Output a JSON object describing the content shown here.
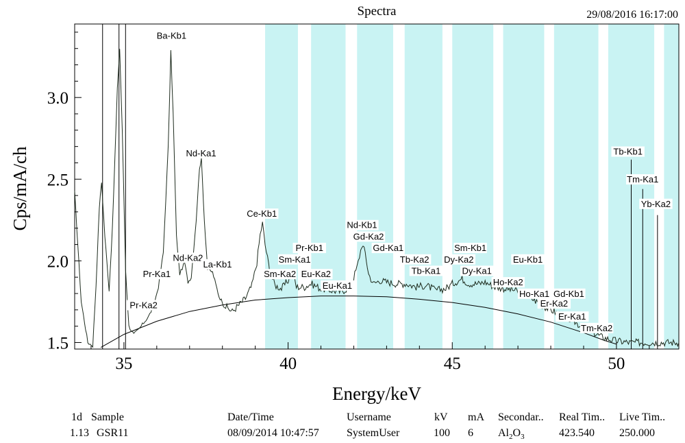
{
  "header": {
    "title": "Spectra",
    "timestamp": "29/08/2016 16:17:00"
  },
  "colors": {
    "highlight": "#c9f3f3",
    "trace": "#1c2a1c",
    "axis": "#000000"
  },
  "chart_data": {
    "type": "line",
    "xlabel": "Energy/keV",
    "ylabel": "Cps/mA/ch",
    "xlim": [
      33.5,
      51.9
    ],
    "ylim": [
      1.46,
      3.45
    ],
    "xticks": [
      35,
      40,
      45,
      50
    ],
    "yticks": [
      1.5,
      2.0,
      2.5,
      3.0
    ],
    "grid": false,
    "highlight_bands": [
      [
        39.3,
        40.3
      ],
      [
        40.7,
        41.75
      ],
      [
        42.1,
        43.2
      ],
      [
        43.55,
        44.7
      ],
      [
        45.0,
        46.25
      ],
      [
        46.55,
        47.8
      ],
      [
        48.1,
        49.45
      ],
      [
        49.75,
        51.15
      ],
      [
        51.45,
        51.9
      ]
    ],
    "spectrum_points": [
      [
        33.5,
        2.42
      ],
      [
        33.7,
        1.75
      ],
      [
        33.9,
        1.5
      ],
      [
        34.05,
        1.48
      ],
      [
        34.15,
        1.85
      ],
      [
        34.25,
        2.33
      ],
      [
        34.32,
        2.48
      ],
      [
        34.42,
        2.15
      ],
      [
        34.55,
        1.82
      ],
      [
        34.65,
        2.2
      ],
      [
        34.8,
        3.05
      ],
      [
        34.87,
        3.3
      ],
      [
        34.95,
        2.8
      ],
      [
        35.05,
        1.95
      ],
      [
        35.15,
        1.6
      ],
      [
        35.3,
        1.55
      ],
      [
        35.45,
        1.58
      ],
      [
        35.6,
        1.62
      ],
      [
        35.75,
        1.66
      ],
      [
        35.9,
        1.72
      ],
      [
        36.05,
        1.84
      ],
      [
        36.2,
        2.05
      ],
      [
        36.35,
        2.7
      ],
      [
        36.43,
        3.28
      ],
      [
        36.5,
        2.9
      ],
      [
        36.6,
        2.15
      ],
      [
        36.7,
        1.92
      ],
      [
        36.85,
        1.99
      ],
      [
        36.95,
        1.87
      ],
      [
        37.05,
        1.9
      ],
      [
        37.2,
        2.25
      ],
      [
        37.3,
        2.57
      ],
      [
        37.36,
        2.62
      ],
      [
        37.45,
        2.25
      ],
      [
        37.55,
        1.95
      ],
      [
        37.7,
        1.93
      ],
      [
        37.9,
        1.78
      ],
      [
        38.1,
        1.72
      ],
      [
        38.3,
        1.69
      ],
      [
        38.5,
        1.73
      ],
      [
        38.7,
        1.77
      ],
      [
        38.9,
        1.85
      ],
      [
        39.05,
        1.99
      ],
      [
        39.15,
        2.16
      ],
      [
        39.22,
        2.23
      ],
      [
        39.3,
        2.1
      ],
      [
        39.45,
        1.93
      ],
      [
        39.6,
        1.85
      ],
      [
        39.8,
        1.83
      ],
      [
        40.0,
        1.88
      ],
      [
        40.15,
        1.93
      ],
      [
        40.25,
        1.84
      ],
      [
        40.5,
        1.84
      ],
      [
        40.7,
        1.86
      ],
      [
        41.0,
        1.83
      ],
      [
        41.3,
        1.82
      ],
      [
        41.6,
        1.81
      ],
      [
        41.9,
        1.84
      ],
      [
        42.1,
        1.96
      ],
      [
        42.25,
        2.1
      ],
      [
        42.35,
        2.05
      ],
      [
        42.45,
        1.92
      ],
      [
        42.6,
        1.86
      ],
      [
        42.8,
        1.88
      ],
      [
        43.0,
        1.87
      ],
      [
        43.3,
        1.86
      ],
      [
        43.6,
        1.86
      ],
      [
        43.9,
        1.84
      ],
      [
        44.2,
        1.85
      ],
      [
        44.5,
        1.82
      ],
      [
        44.8,
        1.83
      ],
      [
        45.0,
        1.86
      ],
      [
        45.3,
        1.89
      ],
      [
        45.5,
        1.86
      ],
      [
        45.8,
        1.86
      ],
      [
        46.0,
        1.87
      ],
      [
        46.3,
        1.84
      ],
      [
        46.6,
        1.83
      ],
      [
        46.9,
        1.82
      ],
      [
        47.2,
        1.79
      ],
      [
        47.5,
        1.76
      ],
      [
        47.8,
        1.72
      ],
      [
        48.1,
        1.69
      ],
      [
        48.4,
        1.66
      ],
      [
        48.7,
        1.63
      ],
      [
        49.0,
        1.59
      ],
      [
        49.3,
        1.56
      ],
      [
        49.6,
        1.53
      ],
      [
        50.0,
        1.51
      ],
      [
        50.4,
        1.5
      ],
      [
        50.8,
        1.5
      ],
      [
        51.2,
        1.5
      ],
      [
        51.6,
        1.5
      ],
      [
        51.9,
        1.5
      ]
    ],
    "background_points": [
      [
        34.3,
        1.47
      ],
      [
        35.0,
        1.55
      ],
      [
        36.0,
        1.63
      ],
      [
        37.0,
        1.69
      ],
      [
        38.0,
        1.73
      ],
      [
        39.0,
        1.76
      ],
      [
        40.0,
        1.775
      ],
      [
        41.0,
        1.785
      ],
      [
        42.0,
        1.785
      ],
      [
        43.0,
        1.78
      ],
      [
        44.0,
        1.765
      ],
      [
        45.0,
        1.745
      ],
      [
        46.0,
        1.715
      ],
      [
        47.0,
        1.675
      ],
      [
        48.0,
        1.625
      ],
      [
        49.0,
        1.56
      ],
      [
        49.6,
        1.515
      ],
      [
        50.0,
        1.49
      ]
    ],
    "markers": [
      [
        34.35,
        3.45
      ],
      [
        34.85,
        3.45
      ],
      [
        35.05,
        3.45
      ],
      [
        50.45,
        2.62
      ],
      [
        50.8,
        2.44
      ],
      [
        51.25,
        2.28
      ]
    ],
    "peak_labels": [
      {
        "text": "Ba-Kb1",
        "x": 36.45,
        "y": 3.36
      },
      {
        "text": "Nd-Ka1",
        "x": 37.35,
        "y": 2.64
      },
      {
        "text": "Ce-Kb1",
        "x": 39.2,
        "y": 2.27
      },
      {
        "text": "Nd-Kb1",
        "x": 42.25,
        "y": 2.2
      },
      {
        "text": "Gd-Ka2",
        "x": 42.45,
        "y": 2.13
      },
      {
        "text": "Pr-Kb1",
        "x": 40.65,
        "y": 2.06
      },
      {
        "text": "Gd-Ka1",
        "x": 43.05,
        "y": 2.06
      },
      {
        "text": "Sm-Kb1",
        "x": 45.55,
        "y": 2.06
      },
      {
        "text": "Nd-Ka2",
        "x": 36.95,
        "y": 2.0
      },
      {
        "text": "Sm-Ka1",
        "x": 40.2,
        "y": 1.99
      },
      {
        "text": "Tb-Ka2",
        "x": 43.85,
        "y": 1.99
      },
      {
        "text": "Dy-Ka2",
        "x": 45.2,
        "y": 1.99
      },
      {
        "text": "Eu-Kb1",
        "x": 47.3,
        "y": 1.99
      },
      {
        "text": "La-Kb1",
        "x": 37.85,
        "y": 1.96
      },
      {
        "text": "Tb-Ka1",
        "x": 44.2,
        "y": 1.92
      },
      {
        "text": "Dy-Ka1",
        "x": 45.75,
        "y": 1.92
      },
      {
        "text": "Pr-Ka1",
        "x": 36.0,
        "y": 1.9
      },
      {
        "text": "Sm-Ka2",
        "x": 39.75,
        "y": 1.9
      },
      {
        "text": "Eu-Ka2",
        "x": 40.85,
        "y": 1.9
      },
      {
        "text": "Ho-Ka2",
        "x": 46.7,
        "y": 1.85
      },
      {
        "text": "Eu-Ka1",
        "x": 41.5,
        "y": 1.83
      },
      {
        "text": "Ho-Ka1",
        "x": 47.5,
        "y": 1.78
      },
      {
        "text": "Gd-Kb1",
        "x": 48.55,
        "y": 1.78
      },
      {
        "text": "Pr-Ka2",
        "x": 35.6,
        "y": 1.71
      },
      {
        "text": "Er-Ka2",
        "x": 48.1,
        "y": 1.72
      },
      {
        "text": "Er-Ka1",
        "x": 48.65,
        "y": 1.64
      },
      {
        "text": "Tm-Ka2",
        "x": 49.4,
        "y": 1.57
      },
      {
        "text": "Tb-Kb1",
        "x": 50.35,
        "y": 2.65
      },
      {
        "text": "Tm-Ka1",
        "x": 50.8,
        "y": 2.48
      },
      {
        "text": "Yb-Ka2",
        "x": 51.2,
        "y": 2.33
      }
    ]
  },
  "footer": {
    "columns": [
      {
        "label": "1d",
        "value": "1.13"
      },
      {
        "label": "Sample",
        "value": "GSR11"
      },
      {
        "label": "Date/Time",
        "value": "08/09/2014 10:47:57"
      },
      {
        "label": "Username",
        "value": "SystemUser"
      },
      {
        "label": "kV",
        "value": "100"
      },
      {
        "label": "mA",
        "value": "6"
      },
      {
        "label": "Secondar..",
        "value_main": "Al",
        "value_sub1": "2",
        "value_mid": "O",
        "value_sub2": "3"
      },
      {
        "label": "Real Tim..",
        "value": "423.540"
      },
      {
        "label": "Live Tim..",
        "value": "250.000"
      }
    ]
  }
}
